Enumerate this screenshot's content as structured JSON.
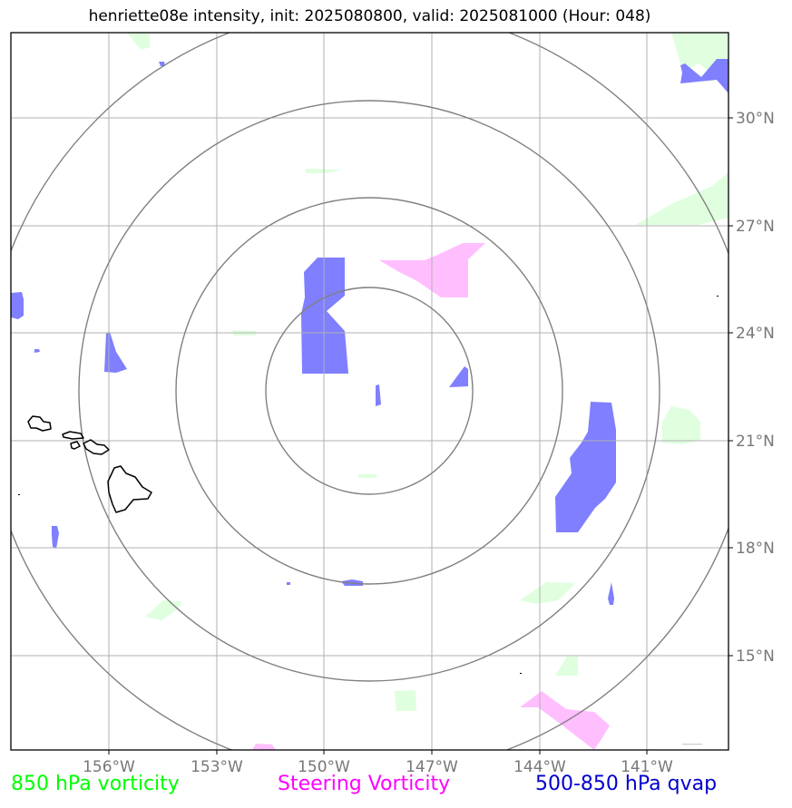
{
  "title": "henriette08e intensity, init: 2025080800, valid: 2025081000 (Hour: 048)",
  "lon_ticks": [
    "156°W",
    "153°W",
    "150°W",
    "147°W",
    "144°W",
    "141°W"
  ],
  "lat_ticks": [
    "30°N",
    "27°N",
    "24°N",
    "21°N",
    "18°N",
    "15°N"
  ],
  "legend": {
    "vorticity_850": {
      "label": "850 hPa vorticity",
      "color": "#00ff00"
    },
    "steering_vorticity": {
      "label": "Steering Vorticity",
      "color": "#ff00ff"
    },
    "qvap": {
      "label": "500-850 hPa qvap",
      "color": "#0000cd"
    }
  },
  "layer_colors": {
    "qvap_fill": "#7f7fff",
    "steering_fill": "#ffbfff",
    "vorticity_fill": "#dfffdf",
    "range_rings": "#808080",
    "gridlines": "#b0b0b0",
    "coastline": "#000000"
  },
  "chart_data": {
    "type": "map",
    "projection": "lat-lon",
    "lon_range": [
      -158.7,
      -138.7
    ],
    "lat_range": [
      12.5,
      32.3
    ],
    "storm_center": {
      "lon": -148.6,
      "lat": 22.5
    },
    "range_rings": 4
  }
}
